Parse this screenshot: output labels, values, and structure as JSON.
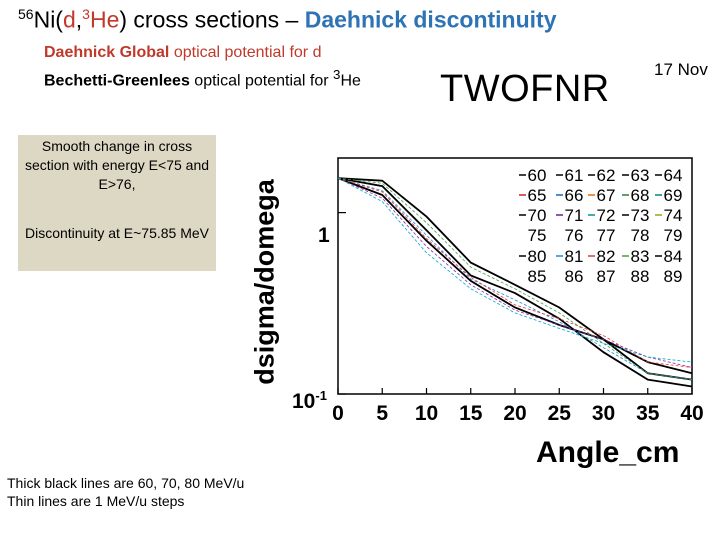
{
  "title": {
    "mass": "56",
    "element_open": "Ni(",
    "projectile": "d",
    "comma": ",",
    "ejectile_mass": "3",
    "ejectile": "He",
    "close": ")",
    "rest": " cross sections – ",
    "highlight": "Daehnick discontinuity"
  },
  "subtitle1": {
    "bold": "Daehnick Global",
    "rest": " optical potential for d"
  },
  "subtitle2": {
    "bold": "Bechetti-Greenlees",
    "rest": " optical potential for ",
    "sup": "3",
    "end": "He"
  },
  "code_name": "TWOFNR",
  "date": "17 Nov",
  "note": {
    "text1": "Smooth change in cross section with energy E<75 and E>76,",
    "text2": "Discontinuity  at E~75.85 MeV"
  },
  "caption": "Thick black lines are 60, 70, 80 MeV/u\nThin lines are 1 MeV/u steps",
  "colors": {
    "title_red": "#c0392b",
    "title_blue": "#2e74b5",
    "note_bg": "#ddd8c4",
    "thick_line": "#000000"
  },
  "chart_data": {
    "type": "line",
    "title": "",
    "xlabel": "Angle_cm",
    "ylabel": "dsigma/domega",
    "xlim": [
      0,
      40
    ],
    "ylim": [
      0.1,
      2
    ],
    "yscale": "log",
    "x_ticks": [
      "0",
      "5",
      "10",
      "15",
      "20",
      "25",
      "30",
      "35",
      "40"
    ],
    "y_ticks": [
      {
        "label": "1",
        "value": 1
      },
      {
        "label": "10",
        "sup": "-1",
        "value": 0.1
      }
    ],
    "legend": [
      [
        {
          "label": "60",
          "color": "#000000"
        },
        {
          "label": "61",
          "color": "#000000"
        },
        {
          "label": "62",
          "color": "#000000"
        },
        {
          "label": "63",
          "color": "#000000"
        },
        {
          "label": "64",
          "color": "#000000"
        }
      ],
      [
        {
          "label": "65",
          "color": "#c62828"
        },
        {
          "label": "66",
          "color": "#1565c0"
        },
        {
          "label": "67",
          "color": "#ef6c00"
        },
        {
          "label": "68",
          "color": "#2e7d32"
        },
        {
          "label": "69",
          "color": "#00838f"
        }
      ],
      [
        {
          "label": "70",
          "color": "#000000"
        },
        {
          "label": "71",
          "color": "#6a1b9a"
        },
        {
          "label": "72",
          "color": "#009688"
        },
        {
          "label": "73",
          "color": "#000000"
        },
        {
          "label": "74",
          "color": "#9e9d24"
        }
      ],
      [
        {
          "label": "75",
          "color": "#000000"
        },
        {
          "label": "76",
          "color": "#000000"
        },
        {
          "label": "77",
          "color": "#000000"
        },
        {
          "label": "78",
          "color": "#000000"
        },
        {
          "label": "79",
          "color": "#000000"
        }
      ],
      [
        {
          "label": "80",
          "color": "#000000"
        },
        {
          "label": "81",
          "color": "#1e88e5"
        },
        {
          "label": "82",
          "color": "#e53935"
        },
        {
          "label": "83",
          "color": "#43a047"
        },
        {
          "label": "84",
          "color": "#000000"
        }
      ],
      [
        {
          "label": "85",
          "color": "#000000"
        },
        {
          "label": "86",
          "color": "#000000"
        },
        {
          "label": "87",
          "color": "#000000"
        },
        {
          "label": "88",
          "color": "#000000"
        },
        {
          "label": "89",
          "color": "#000000"
        }
      ]
    ],
    "series": [
      {
        "name": "60",
        "thick": true,
        "x": [
          0,
          5,
          10,
          15,
          20,
          25,
          30,
          35,
          40
        ],
        "y": [
          1.55,
          1.5,
          0.95,
          0.53,
          0.4,
          0.3,
          0.2,
          0.13,
          0.12
        ]
      },
      {
        "name": "70",
        "thick": true,
        "x": [
          0,
          5,
          10,
          15,
          20,
          25,
          30,
          35,
          40
        ],
        "y": [
          1.55,
          1.4,
          0.8,
          0.45,
          0.36,
          0.26,
          0.17,
          0.12,
          0.11
        ]
      },
      {
        "name": "80",
        "thick": true,
        "x": [
          0,
          5,
          10,
          15,
          20,
          25,
          30,
          35,
          40
        ],
        "y": [
          1.55,
          1.25,
          0.7,
          0.42,
          0.3,
          0.24,
          0.2,
          0.15,
          0.13
        ]
      },
      {
        "name": "75",
        "thick": false,
        "x": [
          0,
          5,
          10,
          15,
          20,
          25,
          30,
          35,
          40
        ],
        "y": [
          1.55,
          1.32,
          0.75,
          0.43,
          0.33,
          0.25,
          0.18,
          0.13,
          0.12
        ]
      },
      {
        "name": "76",
        "thick": false,
        "x": [
          0,
          5,
          10,
          15,
          20,
          25,
          30,
          35,
          40
        ],
        "y": [
          1.55,
          1.3,
          0.72,
          0.44,
          0.31,
          0.26,
          0.21,
          0.15,
          0.14
        ]
      },
      {
        "name": "65",
        "thick": false,
        "x": [
          0,
          5,
          10,
          15,
          20,
          25,
          30,
          35,
          40
        ],
        "y": [
          1.55,
          1.45,
          0.88,
          0.5,
          0.38,
          0.28,
          0.19,
          0.13,
          0.12
        ]
      },
      {
        "name": "85",
        "thick": false,
        "x": [
          0,
          5,
          10,
          15,
          20,
          25,
          30,
          35,
          40
        ],
        "y": [
          1.55,
          1.2,
          0.65,
          0.4,
          0.29,
          0.24,
          0.2,
          0.16,
          0.14
        ]
      },
      {
        "name": "89",
        "thick": false,
        "x": [
          0,
          5,
          10,
          15,
          20,
          25,
          30,
          35,
          40
        ],
        "y": [
          1.55,
          1.15,
          0.6,
          0.38,
          0.28,
          0.23,
          0.19,
          0.16,
          0.15
        ]
      }
    ]
  }
}
